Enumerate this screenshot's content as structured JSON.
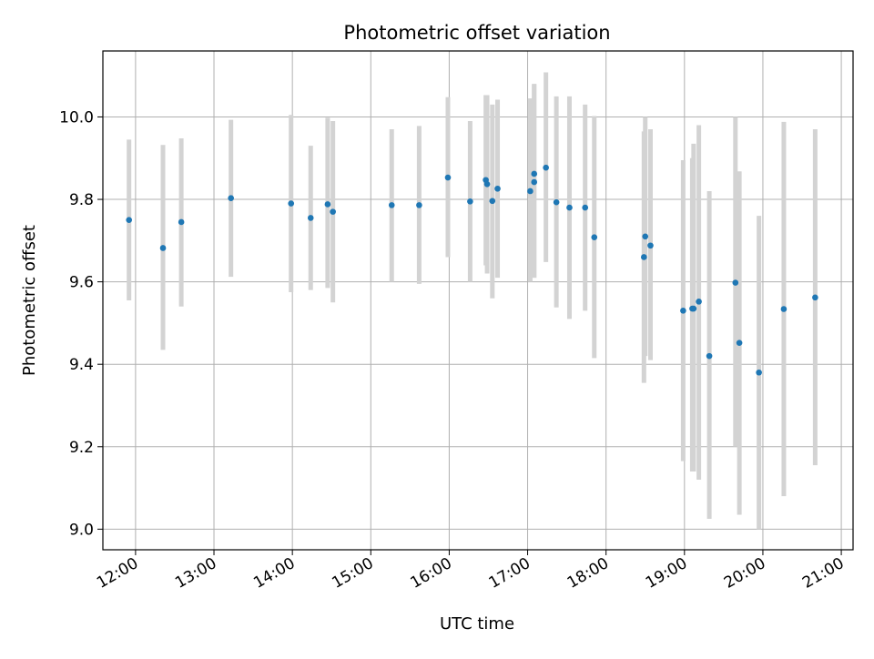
{
  "chart_data": {
    "type": "scatter",
    "title": "Photometric offset variation",
    "xlabel": "UTC time",
    "ylabel": "Photometric offset",
    "x_ticks": [
      "12:00",
      "13:00",
      "14:00",
      "15:00",
      "16:00",
      "17:00",
      "18:00",
      "19:00",
      "20:00",
      "21:00"
    ],
    "y_ticks": [
      "9.0",
      "9.2",
      "9.4",
      "9.6",
      "9.8",
      "10.0"
    ],
    "xlim": [
      "11:35",
      "21:09"
    ],
    "ylim": [
      8.95,
      10.16
    ],
    "grid": true,
    "colors": {
      "marker": "#1f77b4",
      "errorbar": "#d3d3d3",
      "grid": "#b0b0b0"
    },
    "points": [
      {
        "x": "11:55",
        "y": 9.75,
        "ymin": 9.555,
        "ymax": 9.945
      },
      {
        "x": "12:21",
        "y": 9.682,
        "ymin": 9.435,
        "ymax": 9.932
      },
      {
        "x": "12:35",
        "y": 9.745,
        "ymin": 9.54,
        "ymax": 9.948
      },
      {
        "x": "13:13",
        "y": 9.803,
        "ymin": 9.612,
        "ymax": 9.993
      },
      {
        "x": "13:59",
        "y": 9.79,
        "ymin": 9.575,
        "ymax": 10.005
      },
      {
        "x": "14:14",
        "y": 9.755,
        "ymin": 9.58,
        "ymax": 9.93
      },
      {
        "x": "14:27",
        "y": 9.788,
        "ymin": 9.585,
        "ymax": 9.998
      },
      {
        "x": "14:31",
        "y": 9.77,
        "ymin": 9.55,
        "ymax": 9.99
      },
      {
        "x": "15:16",
        "y": 9.786,
        "ymin": 9.6,
        "ymax": 9.97
      },
      {
        "x": "15:37",
        "y": 9.786,
        "ymin": 9.595,
        "ymax": 9.978
      },
      {
        "x": "15:59",
        "y": 9.853,
        "ymin": 9.66,
        "ymax": 10.048
      },
      {
        "x": "16:16",
        "y": 9.795,
        "ymin": 9.6,
        "ymax": 9.99
      },
      {
        "x": "16:28",
        "y": 9.847,
        "ymin": 9.64,
        "ymax": 10.053
      },
      {
        "x": "16:29",
        "y": 9.837,
        "ymin": 9.62,
        "ymax": 10.053
      },
      {
        "x": "16:33",
        "y": 9.796,
        "ymin": 9.56,
        "ymax": 10.03
      },
      {
        "x": "16:37",
        "y": 9.826,
        "ymin": 9.61,
        "ymax": 10.042
      },
      {
        "x": "17:02",
        "y": 9.82,
        "ymin": 9.6,
        "ymax": 10.045
      },
      {
        "x": "17:05",
        "y": 9.842,
        "ymin": 9.61,
        "ymax": 10.08
      },
      {
        "x": "17:05",
        "y": 9.862,
        "ymin": 9.61,
        "ymax": 10.08
      },
      {
        "x": "17:14",
        "y": 9.877,
        "ymin": 9.648,
        "ymax": 10.108
      },
      {
        "x": "17:22",
        "y": 9.793,
        "ymin": 9.538,
        "ymax": 10.05
      },
      {
        "x": "17:32",
        "y": 9.78,
        "ymin": 9.51,
        "ymax": 10.05
      },
      {
        "x": "17:44",
        "y": 9.78,
        "ymin": 9.53,
        "ymax": 10.03
      },
      {
        "x": "17:51",
        "y": 9.708,
        "ymin": 9.415,
        "ymax": 10.002
      },
      {
        "x": "18:29",
        "y": 9.66,
        "ymin": 9.355,
        "ymax": 9.965
      },
      {
        "x": "18:30",
        "y": 9.71,
        "ymin": 9.42,
        "ymax": 10.0
      },
      {
        "x": "18:34",
        "y": 9.688,
        "ymin": 9.41,
        "ymax": 9.97
      },
      {
        "x": "18:59",
        "y": 9.53,
        "ymin": 9.165,
        "ymax": 9.895
      },
      {
        "x": "19:06",
        "y": 9.535,
        "ymin": 9.14,
        "ymax": 9.9
      },
      {
        "x": "19:07",
        "y": 9.535,
        "ymin": 9.14,
        "ymax": 9.935
      },
      {
        "x": "19:11",
        "y": 9.552,
        "ymin": 9.12,
        "ymax": 9.98
      },
      {
        "x": "19:19",
        "y": 9.42,
        "ymin": 9.025,
        "ymax": 9.82
      },
      {
        "x": "19:39",
        "y": 9.598,
        "ymin": 9.2,
        "ymax": 10.0
      },
      {
        "x": "19:42",
        "y": 9.452,
        "ymin": 9.035,
        "ymax": 9.868
      },
      {
        "x": "19:57",
        "y": 9.38,
        "ymin": 9.0,
        "ymax": 9.76
      },
      {
        "x": "20:16",
        "y": 9.534,
        "ymin": 9.08,
        "ymax": 9.988
      },
      {
        "x": "20:40",
        "y": 9.562,
        "ymin": 9.155,
        "ymax": 9.97
      }
    ]
  }
}
